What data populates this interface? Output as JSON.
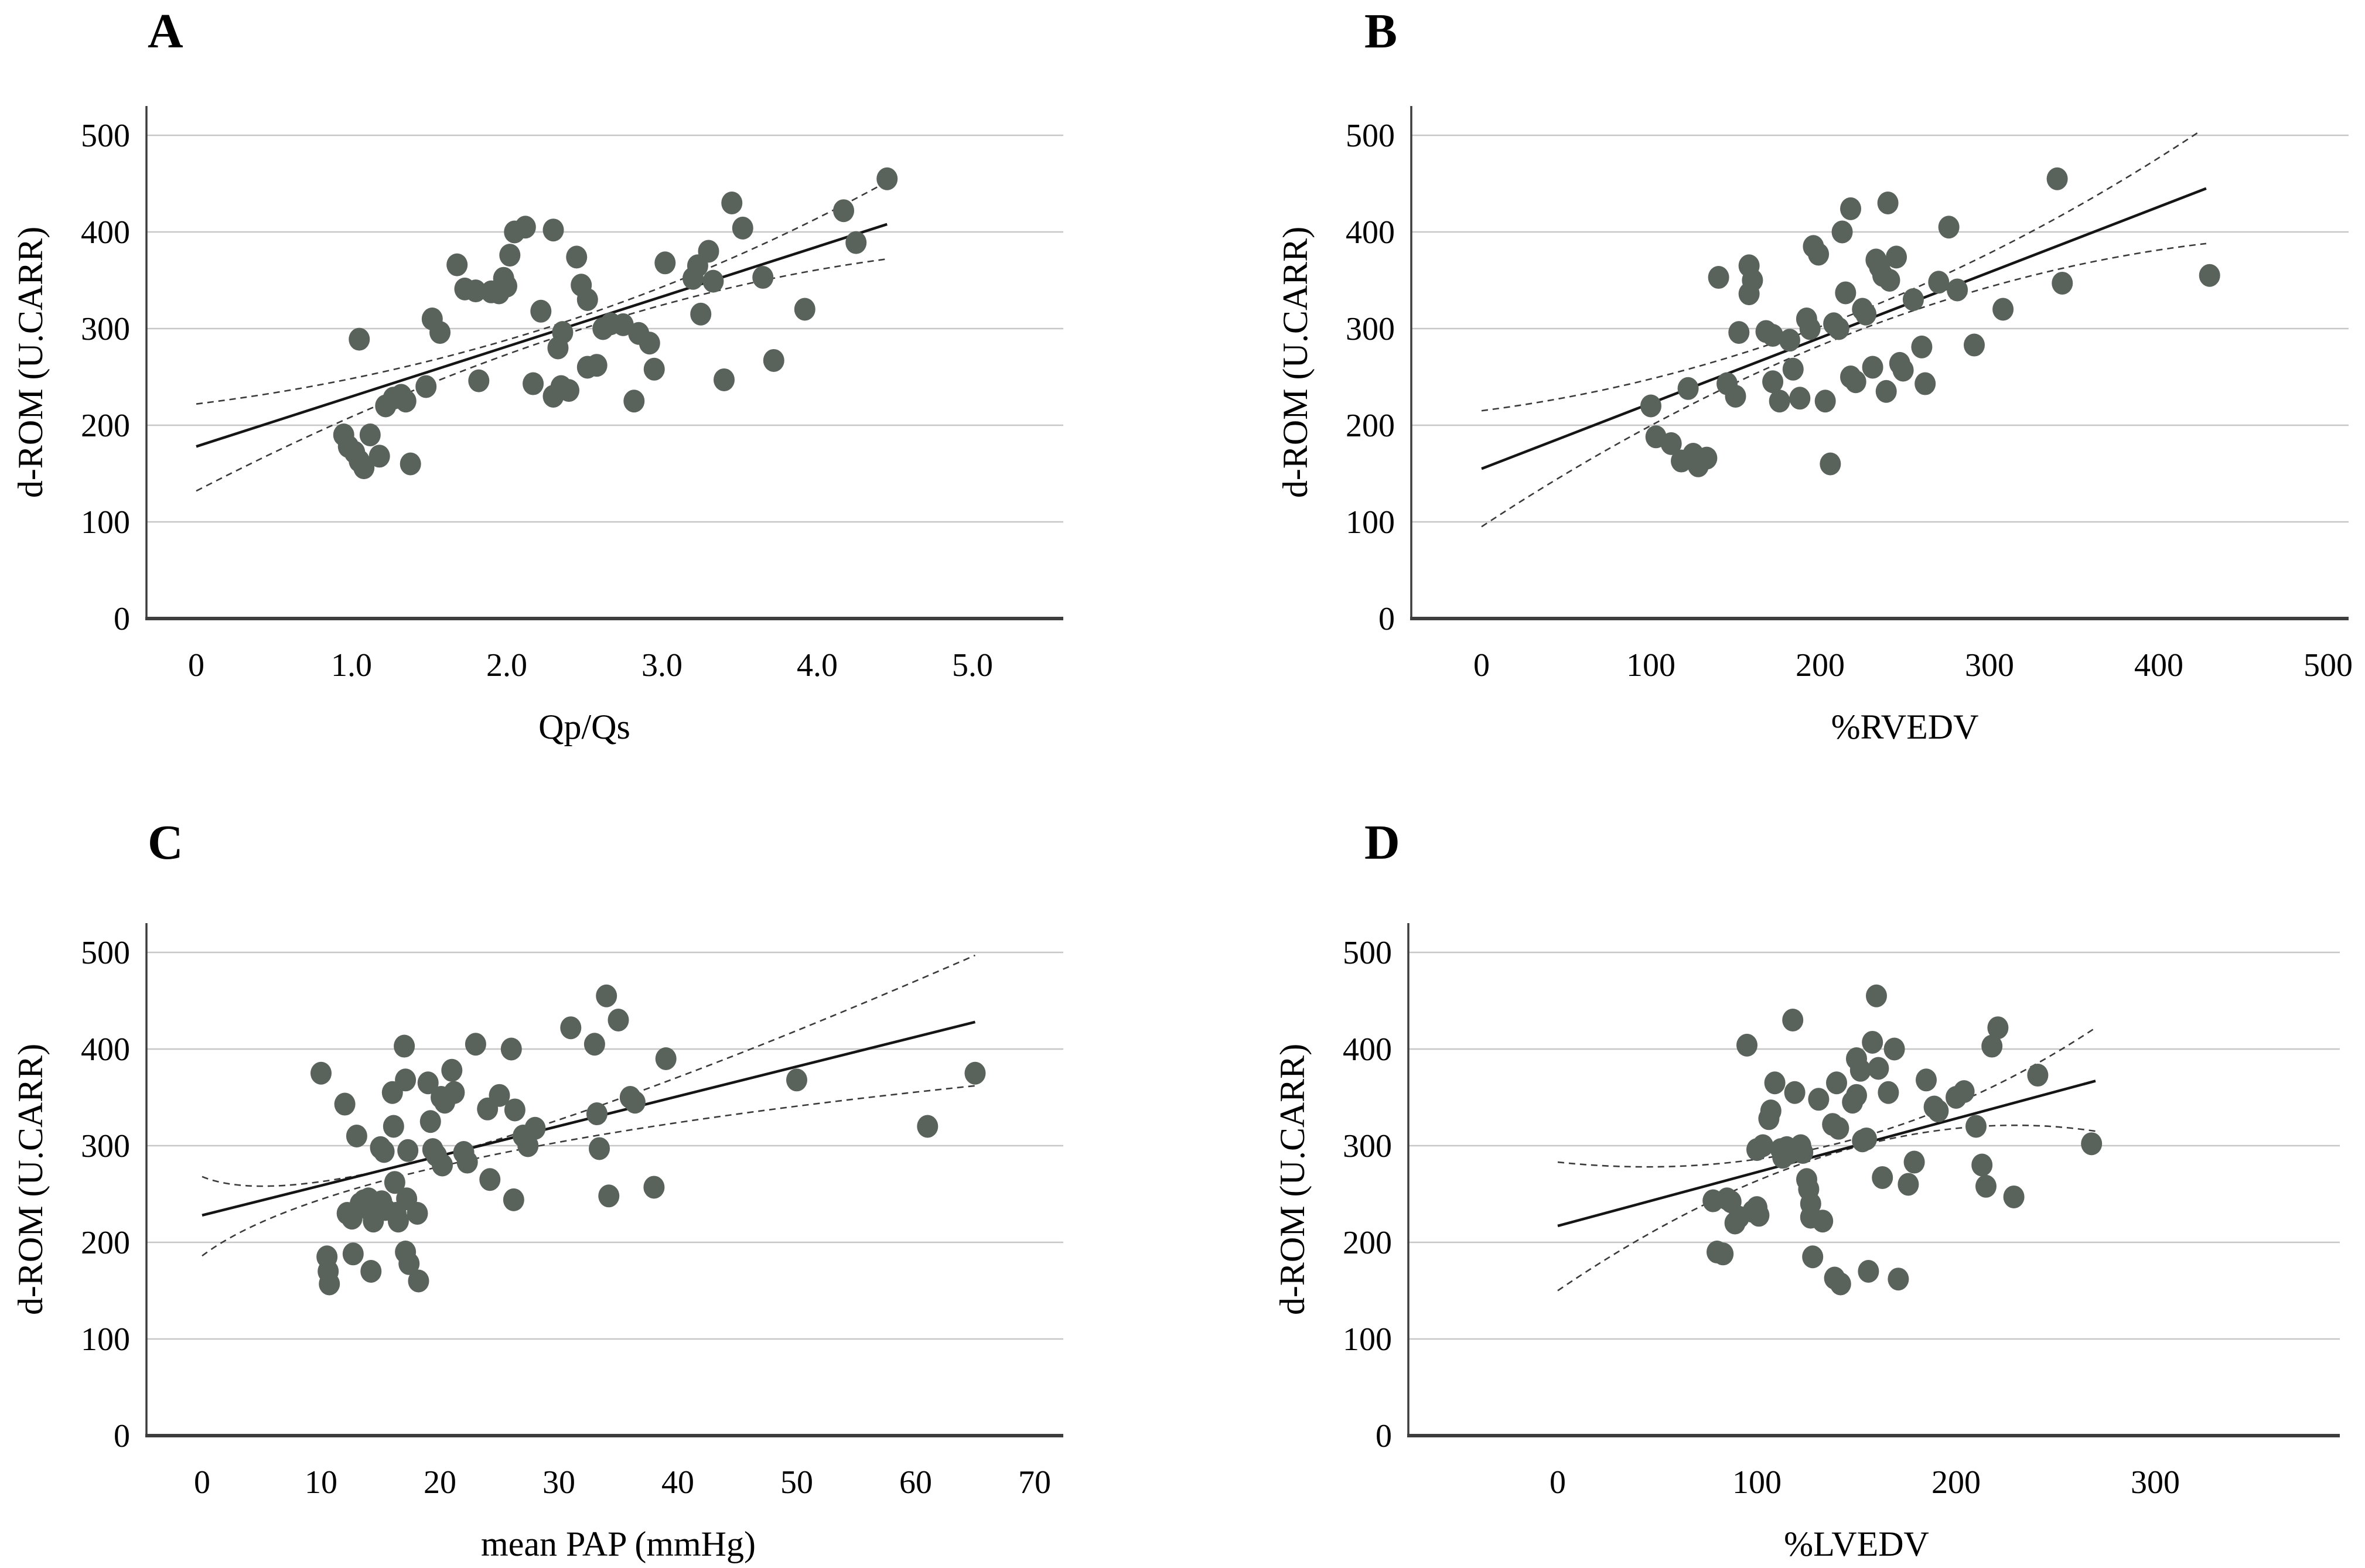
{
  "figure": {
    "background": "#ffffff",
    "colors": {
      "point": "#5a635b",
      "grid": "#c7c7c7",
      "axis": "#3d3d3d",
      "regression": "#151515",
      "ci_dashed": "#3a3a3a",
      "text": "#000000"
    }
  },
  "chart_data": [
    {
      "type": "scatter",
      "panel_label": "A",
      "xlabel": "Qp/Qs",
      "ylabel": "d-ROM (U.CARR)",
      "xlim": [
        0,
        5.6
      ],
      "ylim": [
        0,
        530
      ],
      "grid": "horizontal-only",
      "legend": "none",
      "xticks": [
        0,
        1,
        2,
        3,
        4,
        5
      ],
      "xtick_labels": [
        "0",
        "1.0",
        "2.0",
        "3.0",
        "4.0",
        "5.0"
      ],
      "yticks": [
        0,
        100,
        200,
        300,
        400,
        500
      ],
      "ytick_labels": [
        "0",
        "100",
        "200",
        "300",
        "400",
        "500"
      ],
      "points": [
        [
          0.95,
          190
        ],
        [
          0.98,
          178
        ],
        [
          1.02,
          172
        ],
        [
          1.05,
          163
        ],
        [
          1.08,
          156
        ],
        [
          1.05,
          289
        ],
        [
          1.12,
          190
        ],
        [
          1.18,
          168
        ],
        [
          1.22,
          220
        ],
        [
          1.27,
          228
        ],
        [
          1.32,
          231
        ],
        [
          1.35,
          225
        ],
        [
          1.38,
          160
        ],
        [
          1.48,
          240
        ],
        [
          1.52,
          310
        ],
        [
          1.57,
          296
        ],
        [
          1.68,
          366
        ],
        [
          1.73,
          341
        ],
        [
          1.8,
          339
        ],
        [
          1.82,
          246
        ],
        [
          1.9,
          338
        ],
        [
          1.95,
          337
        ],
        [
          1.98,
          352
        ],
        [
          2.0,
          344
        ],
        [
          2.02,
          376
        ],
        [
          2.05,
          400
        ],
        [
          2.12,
          405
        ],
        [
          2.17,
          243
        ],
        [
          2.22,
          318
        ],
        [
          2.3,
          402
        ],
        [
          2.3,
          230
        ],
        [
          2.35,
          240
        ],
        [
          2.4,
          236
        ],
        [
          2.33,
          280
        ],
        [
          2.36,
          296
        ],
        [
          2.45,
          374
        ],
        [
          2.48,
          345
        ],
        [
          2.52,
          330
        ],
        [
          2.52,
          260
        ],
        [
          2.58,
          262
        ],
        [
          2.62,
          300
        ],
        [
          2.67,
          305
        ],
        [
          2.75,
          304
        ],
        [
          2.82,
          225
        ],
        [
          2.85,
          295
        ],
        [
          2.92,
          285
        ],
        [
          2.95,
          258
        ],
        [
          3.02,
          368
        ],
        [
          3.2,
          352
        ],
        [
          3.23,
          365
        ],
        [
          3.25,
          315
        ],
        [
          3.3,
          380
        ],
        [
          3.33,
          349
        ],
        [
          3.4,
          247
        ],
        [
          3.45,
          430
        ],
        [
          3.52,
          404
        ],
        [
          3.65,
          353
        ],
        [
          3.72,
          267
        ],
        [
          3.92,
          320
        ],
        [
          4.17,
          422
        ],
        [
          4.25,
          389
        ],
        [
          4.45,
          455
        ]
      ],
      "regression": {
        "x": [
          0,
          4.45
        ],
        "y": [
          178,
          408
        ]
      },
      "ci_upper": {
        "x": [
          0,
          2.3,
          4.45
        ],
        "y": [
          222,
          303,
          452
        ]
      },
      "ci_lower": {
        "x": [
          0,
          2.3,
          4.45
        ],
        "y": [
          132,
          290,
          372
        ]
      }
    },
    {
      "type": "scatter",
      "panel_label": "B",
      "xlabel": "%RVEDV",
      "ylabel": "d-ROM (U.CARR)",
      "xlim": [
        0,
        530
      ],
      "ylim": [
        0,
        530
      ],
      "grid": "horizontal-only",
      "legend": "none",
      "xticks": [
        0,
        100,
        200,
        300,
        400,
        500
      ],
      "xtick_labels": [
        "0",
        "100",
        "200",
        "300",
        "400",
        "500"
      ],
      "yticks": [
        0,
        100,
        200,
        300,
        400,
        500
      ],
      "ytick_labels": [
        "0",
        "100",
        "200",
        "300",
        "400",
        "500"
      ],
      "points": [
        [
          100,
          220
        ],
        [
          103,
          188
        ],
        [
          112,
          181
        ],
        [
          118,
          163
        ],
        [
          122,
          238
        ],
        [
          125,
          170
        ],
        [
          128,
          158
        ],
        [
          133,
          166
        ],
        [
          140,
          353
        ],
        [
          145,
          243
        ],
        [
          150,
          230
        ],
        [
          152,
          296
        ],
        [
          158,
          365
        ],
        [
          160,
          350
        ],
        [
          158,
          336
        ],
        [
          168,
          297
        ],
        [
          172,
          293
        ],
        [
          172,
          245
        ],
        [
          176,
          225
        ],
        [
          182,
          288
        ],
        [
          184,
          258
        ],
        [
          188,
          228
        ],
        [
          192,
          310
        ],
        [
          194,
          300
        ],
        [
          196,
          385
        ],
        [
          199,
          377
        ],
        [
          203,
          225
        ],
        [
          206,
          160
        ],
        [
          208,
          305
        ],
        [
          211,
          300
        ],
        [
          213,
          400
        ],
        [
          218,
          424
        ],
        [
          215,
          337
        ],
        [
          218,
          250
        ],
        [
          221,
          245
        ],
        [
          225,
          320
        ],
        [
          227,
          315
        ],
        [
          231,
          260
        ],
        [
          233,
          371
        ],
        [
          235,
          364
        ],
        [
          237,
          355
        ],
        [
          240,
          430
        ],
        [
          241,
          350
        ],
        [
          239,
          235
        ],
        [
          245,
          374
        ],
        [
          247,
          264
        ],
        [
          249,
          257
        ],
        [
          255,
          330
        ],
        [
          260,
          281
        ],
        [
          262,
          243
        ],
        [
          270,
          348
        ],
        [
          276,
          405
        ],
        [
          281,
          340
        ],
        [
          291,
          283
        ],
        [
          308,
          320
        ],
        [
          340,
          455
        ],
        [
          343,
          347
        ],
        [
          430,
          355
        ]
      ],
      "regression": {
        "x": [
          0,
          428
        ],
        "y": [
          155,
          445
        ]
      },
      "ci_upper": {
        "x": [
          0,
          215,
          425
        ],
        "y": [
          215,
          312,
          505
        ]
      },
      "ci_lower": {
        "x": [
          0,
          215,
          428
        ],
        "y": [
          95,
          293,
          388
        ]
      }
    },
    {
      "type": "scatter",
      "panel_label": "C",
      "xlabel": "mean PAP (mmHg)",
      "ylabel": "d-ROM (U.CARR)",
      "xlim": [
        0,
        74
      ],
      "ylim": [
        0,
        530
      ],
      "grid": "horizontal-only",
      "legend": "none",
      "xticks": [
        0,
        10,
        20,
        30,
        40,
        50,
        60,
        70
      ],
      "xtick_labels": [
        "0",
        "10",
        "20",
        "30",
        "40",
        "50",
        "60",
        "70"
      ],
      "yticks": [
        0,
        100,
        200,
        300,
        400,
        500
      ],
      "ytick_labels": [
        "0",
        "100",
        "200",
        "300",
        "400",
        "500"
      ],
      "points": [
        [
          10,
          375
        ],
        [
          10.5,
          185
        ],
        [
          10.6,
          170
        ],
        [
          10.7,
          157
        ],
        [
          12,
          343
        ],
        [
          12.2,
          230
        ],
        [
          12.6,
          225
        ],
        [
          12.7,
          188
        ],
        [
          13,
          310
        ],
        [
          13.3,
          240
        ],
        [
          13.6,
          243
        ],
        [
          14,
          245
        ],
        [
          14.1,
          237
        ],
        [
          14.3,
          230
        ],
        [
          14.4,
          222
        ],
        [
          14.2,
          170
        ],
        [
          15,
          298
        ],
        [
          15.3,
          294
        ],
        [
          15.1,
          242
        ],
        [
          15.4,
          234
        ],
        [
          16,
          355
        ],
        [
          16.1,
          320
        ],
        [
          16.2,
          262
        ],
        [
          16.3,
          230
        ],
        [
          16.5,
          222
        ],
        [
          17,
          403
        ],
        [
          17.1,
          368
        ],
        [
          17.3,
          295
        ],
        [
          17.2,
          245
        ],
        [
          17.1,
          190
        ],
        [
          17.4,
          178
        ],
        [
          18.1,
          230
        ],
        [
          18.2,
          160
        ],
        [
          19,
          365
        ],
        [
          19.2,
          325
        ],
        [
          19.4,
          296
        ],
        [
          19.7,
          290
        ],
        [
          20.1,
          350
        ],
        [
          20.4,
          345
        ],
        [
          20.2,
          280
        ],
        [
          21,
          378
        ],
        [
          21.2,
          355
        ],
        [
          22,
          293
        ],
        [
          22.3,
          283
        ],
        [
          23,
          405
        ],
        [
          24,
          338
        ],
        [
          24.2,
          265
        ],
        [
          25,
          352
        ],
        [
          26,
          400
        ],
        [
          26.3,
          337
        ],
        [
          26.2,
          244
        ],
        [
          27,
          310
        ],
        [
          27.4,
          300
        ],
        [
          28,
          318
        ],
        [
          31,
          422
        ],
        [
          33,
          405
        ],
        [
          33.2,
          333
        ],
        [
          33.4,
          297
        ],
        [
          34,
          455
        ],
        [
          34.2,
          248
        ],
        [
          35,
          430
        ],
        [
          36,
          350
        ],
        [
          36.4,
          345
        ],
        [
          38,
          257
        ],
        [
          39,
          390
        ],
        [
          50,
          368
        ],
        [
          61,
          320
        ],
        [
          65,
          375
        ]
      ],
      "regression": {
        "x": [
          0,
          65
        ],
        "y": [
          228,
          428
        ]
      },
      "ci_upper": {
        "x": [
          0,
          22,
          65
        ],
        "y": [
          268,
          296,
          497
        ]
      },
      "ci_lower": {
        "x": [
          0,
          22,
          65
        ],
        "y": [
          186,
          284,
          362
        ]
      }
    },
    {
      "type": "scatter",
      "panel_label": "D",
      "xlabel": "%LVEDV",
      "ylabel": "d-ROM (U.CARR)",
      "xlim": [
        0,
        320
      ],
      "ylim": [
        0,
        530
      ],
      "grid": "horizontal-only",
      "legend": "none",
      "xticks": [
        0,
        100,
        200,
        300
      ],
      "xtick_labels": [
        "0",
        "100",
        "200",
        "300"
      ],
      "yticks": [
        0,
        100,
        200,
        300,
        400,
        500
      ],
      "ytick_labels": [
        "0",
        "100",
        "200",
        "300",
        "400",
        "500"
      ],
      "points": [
        [
          78,
          243
        ],
        [
          80,
          190
        ],
        [
          83,
          188
        ],
        [
          85,
          245
        ],
        [
          87,
          242
        ],
        [
          89,
          220
        ],
        [
          91,
          226
        ],
        [
          95,
          404
        ],
        [
          98,
          232
        ],
        [
          100,
          236
        ],
        [
          101,
          228
        ],
        [
          100,
          296
        ],
        [
          103,
          300
        ],
        [
          106,
          328
        ],
        [
          107,
          336
        ],
        [
          109,
          365
        ],
        [
          112,
          296
        ],
        [
          113,
          288
        ],
        [
          115,
          298
        ],
        [
          116,
          292
        ],
        [
          118,
          430
        ],
        [
          119,
          355
        ],
        [
          122,
          300
        ],
        [
          123,
          293
        ],
        [
          125,
          265
        ],
        [
          126,
          255
        ],
        [
          127,
          240
        ],
        [
          127,
          226
        ],
        [
          128,
          185
        ],
        [
          131,
          348
        ],
        [
          133,
          222
        ],
        [
          138,
          322
        ],
        [
          141,
          318
        ],
        [
          140,
          365
        ],
        [
          139,
          163
        ],
        [
          142,
          157
        ],
        [
          148,
          345
        ],
        [
          150,
          352
        ],
        [
          150,
          390
        ],
        [
          152,
          378
        ],
        [
          153,
          305
        ],
        [
          155,
          307
        ],
        [
          156,
          170
        ],
        [
          158,
          407
        ],
        [
          160,
          455
        ],
        [
          161,
          380
        ],
        [
          163,
          267
        ],
        [
          166,
          355
        ],
        [
          169,
          400
        ],
        [
          171,
          162
        ],
        [
          176,
          260
        ],
        [
          179,
          283
        ],
        [
          185,
          368
        ],
        [
          189,
          340
        ],
        [
          191,
          336
        ],
        [
          200,
          350
        ],
        [
          204,
          356
        ],
        [
          210,
          320
        ],
        [
          213,
          280
        ],
        [
          215,
          258
        ],
        [
          218,
          403
        ],
        [
          221,
          422
        ],
        [
          229,
          247
        ],
        [
          241,
          373
        ],
        [
          268,
          302
        ]
      ],
      "regression": {
        "x": [
          0,
          270
        ],
        "y": [
          217,
          367
        ]
      },
      "ci_upper": {
        "x": [
          0,
          140,
          270
        ],
        "y": [
          283,
          302,
          422
        ]
      },
      "ci_lower": {
        "x": [
          0,
          140,
          270
        ],
        "y": [
          150,
          293,
          315
        ]
      }
    }
  ]
}
